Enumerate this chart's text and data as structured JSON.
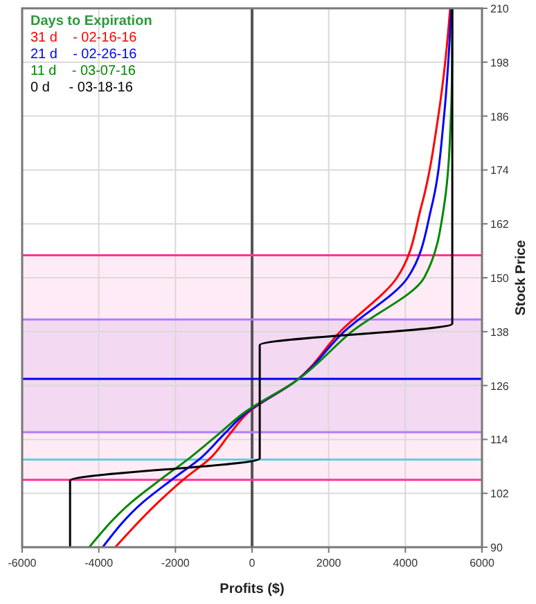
{
  "chart_data": {
    "type": "line",
    "xlabel": "Profits ($)",
    "ylabel": "Stock Price",
    "legend_title": "Days to Expiration",
    "legend": "top left",
    "grid": true,
    "xlim": [
      -6000,
      6000
    ],
    "xticks": [
      -6000,
      -4000,
      -2000,
      0,
      2000,
      4000,
      6000
    ],
    "ylim": [
      90,
      210
    ],
    "yticks": [
      90,
      102,
      114,
      126,
      138,
      150,
      162,
      174,
      186,
      198,
      210
    ],
    "series": [
      {
        "name": "31 d    - 02-16-16",
        "color": "#ff0000",
        "x": [
          -3570,
          -2450,
          -1800,
          -1070,
          -600,
          -100,
          1140,
          2300,
          3780,
          4420,
          4860,
          5040,
          5170
        ],
        "values": [
          90,
          100,
          105,
          110,
          115,
          120,
          127,
          138,
          150,
          166,
          186,
          198,
          210
        ]
      },
      {
        "name": "21 d    - 02-26-16",
        "color": "#0000ff",
        "x": [
          -3900,
          -2850,
          -2100,
          -1320,
          -750,
          -150,
          1140,
          2400,
          4060,
          4690,
          5010,
          5120,
          5200
        ],
        "values": [
          90,
          100,
          105,
          110,
          115,
          120,
          127,
          138,
          150,
          166,
          186,
          198,
          210
        ]
      },
      {
        "name": "11 d    - 03-07-16",
        "color": "#008800",
        "x": [
          -4250,
          -3150,
          -2400,
          -1610,
          -900,
          -200,
          1140,
          2600,
          4490,
          5010,
          5190,
          5220,
          5225
        ],
        "values": [
          90,
          100,
          105,
          110,
          115,
          120,
          127,
          138,
          150,
          166,
          186,
          198,
          210
        ]
      },
      {
        "name": "0 d     - 03-18-16",
        "color": "#000000",
        "x": [
          -4750,
          -4750,
          200,
          200,
          5225,
          5225
        ],
        "values": [
          90,
          104.8,
          109.8,
          135,
          139.8,
          210
        ]
      }
    ],
    "bands": [
      {
        "axis": "y",
        "from": 105,
        "to": 155,
        "color": "#ffe6f3"
      },
      {
        "axis": "y",
        "from": 115.6,
        "to": 140.7,
        "color": "#f0d4f0"
      }
    ],
    "ref_lines": [
      {
        "axis": "x",
        "value": 0,
        "color": "#555555"
      },
      {
        "axis": "y",
        "value": 155,
        "color": "#ff3399"
      },
      {
        "axis": "y",
        "value": 105,
        "color": "#ff3399"
      },
      {
        "axis": "y",
        "value": 140.7,
        "color": "#b27cff"
      },
      {
        "axis": "y",
        "value": 115.6,
        "color": "#b27cff"
      },
      {
        "axis": "y",
        "value": 109.5,
        "color": "#66ccdd"
      },
      {
        "axis": "y",
        "value": 127.5,
        "color": "#0000ee"
      }
    ]
  }
}
